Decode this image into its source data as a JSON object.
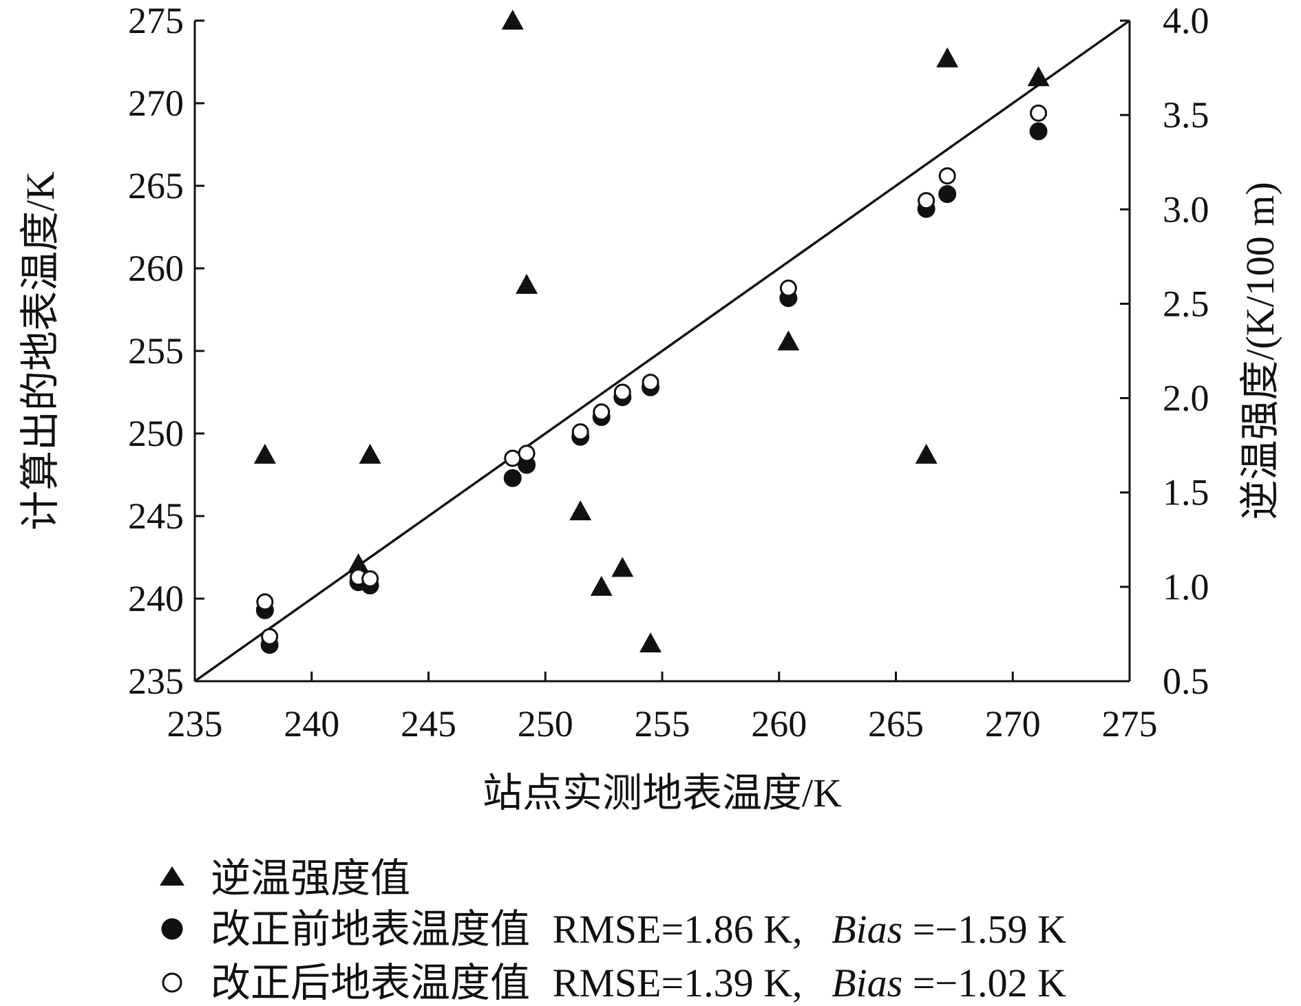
{
  "chart_data": {
    "type": "scatter",
    "xlabel": "站点实测地表温度/K",
    "ylabel": "计算出的地表温度/K",
    "y2label": "逆温强度/(K/100 m)",
    "xlim": [
      235,
      275
    ],
    "ylim": [
      235,
      275
    ],
    "y2lim": [
      0.5,
      4.0
    ],
    "x_ticks": [
      "235",
      "240",
      "245",
      "250",
      "255",
      "260",
      "265",
      "270",
      "275"
    ],
    "y_ticks": [
      "235",
      "240",
      "245",
      "250",
      "255",
      "260",
      "265",
      "270",
      "275"
    ],
    "y2_ticks": [
      "0.5",
      "1.0",
      "1.5",
      "2.0",
      "2.5",
      "3.0",
      "3.5",
      "4.0"
    ],
    "reference_line": {
      "from": [
        235,
        235
      ],
      "to": [
        275,
        275
      ]
    },
    "grid": false,
    "legend_position": "bottom",
    "series": [
      {
        "name": "逆温强度值",
        "axis": "right",
        "marker": "triangle",
        "points": [
          [
            238,
            1.7
          ],
          [
            242.0,
            1.12
          ],
          [
            242.5,
            1.7
          ],
          [
            248.6,
            4.0
          ],
          [
            249.2,
            2.6
          ],
          [
            251.5,
            1.4
          ],
          [
            252.4,
            1.0
          ],
          [
            253.3,
            1.1
          ],
          [
            254.5,
            0.7
          ],
          [
            260.4,
            2.3
          ],
          [
            266.3,
            1.7
          ],
          [
            267.2,
            3.8
          ],
          [
            271.1,
            3.7
          ]
        ]
      },
      {
        "name": "改正前地表温度值",
        "label_rmse": "RMSE=1.86 K,",
        "label_bias_key": "Bias",
        "label_bias_value": "=−1.59 K",
        "axis": "left",
        "marker": "filled-circle",
        "points": [
          [
            238.0,
            239.3
          ],
          [
            238.2,
            237.2
          ],
          [
            242.0,
            241.0
          ],
          [
            242.5,
            240.8
          ],
          [
            248.6,
            247.3
          ],
          [
            249.2,
            248.1
          ],
          [
            251.5,
            249.8
          ],
          [
            252.4,
            251.0
          ],
          [
            253.3,
            252.2
          ],
          [
            254.5,
            252.8
          ],
          [
            260.4,
            258.2
          ],
          [
            266.3,
            263.6
          ],
          [
            267.2,
            264.5
          ],
          [
            271.1,
            268.3
          ]
        ]
      },
      {
        "name": "改正后地表温度值",
        "label_rmse": "RMSE=1.39 K,",
        "label_bias_key": "Bias",
        "label_bias_value": "=−1.02 K",
        "axis": "left",
        "marker": "open-circle",
        "points": [
          [
            238.0,
            239.8
          ],
          [
            238.2,
            237.7
          ],
          [
            242.0,
            241.3
          ],
          [
            242.5,
            241.2
          ],
          [
            248.6,
            248.5
          ],
          [
            249.2,
            248.8
          ],
          [
            251.5,
            250.1
          ],
          [
            252.4,
            251.3
          ],
          [
            253.3,
            252.5
          ],
          [
            254.5,
            253.1
          ],
          [
            260.4,
            258.8
          ],
          [
            266.3,
            264.1
          ],
          [
            267.2,
            265.6
          ],
          [
            271.1,
            269.4
          ]
        ]
      }
    ]
  }
}
